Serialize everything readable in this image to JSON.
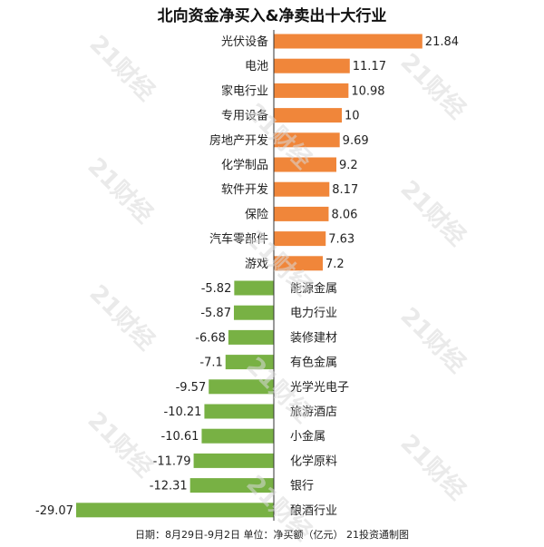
{
  "title": "北向资金净买入&净卖出十大行业",
  "footer": "日期：8月29日-9月2日 单位：净买额（亿元） 21投资通制图",
  "watermark": "21财经",
  "colors": {
    "positive": "#f0863a",
    "negative": "#78b144",
    "axis": "#333333"
  },
  "chart_data": {
    "type": "bar",
    "orientation": "horizontal",
    "title": "北向资金净买入&净卖出十大行业",
    "categories": [
      "光伏设备",
      "电池",
      "家电行业",
      "专用设备",
      "房地产开发",
      "化学制品",
      "软件开发",
      "保险",
      "汽车零部件",
      "游戏",
      "能源金属",
      "电力行业",
      "装修建材",
      "有色金属",
      "光学光电子",
      "旅游酒店",
      "小金属",
      "化学原料",
      "银行",
      "酿酒行业"
    ],
    "values": [
      21.84,
      11.17,
      10.98,
      10,
      9.69,
      9.2,
      8.17,
      8.06,
      7.63,
      7.2,
      -5.82,
      -5.87,
      -6.68,
      -7.1,
      -9.57,
      -10.21,
      -10.61,
      -11.79,
      -12.31,
      -29.07
    ],
    "value_labels": [
      "21.84",
      "11.17",
      "10.98",
      "10",
      "9.69",
      "9.2",
      "8.17",
      "8.06",
      "7.63",
      "7.2",
      "-5.82",
      "-5.87",
      "-6.68",
      "-7.1",
      "-9.57",
      "-10.21",
      "-10.61",
      "-11.79",
      "-12.31",
      "-29.07"
    ],
    "xlim": [
      -29.07,
      21.84
    ],
    "grid": false,
    "legend": "none"
  }
}
